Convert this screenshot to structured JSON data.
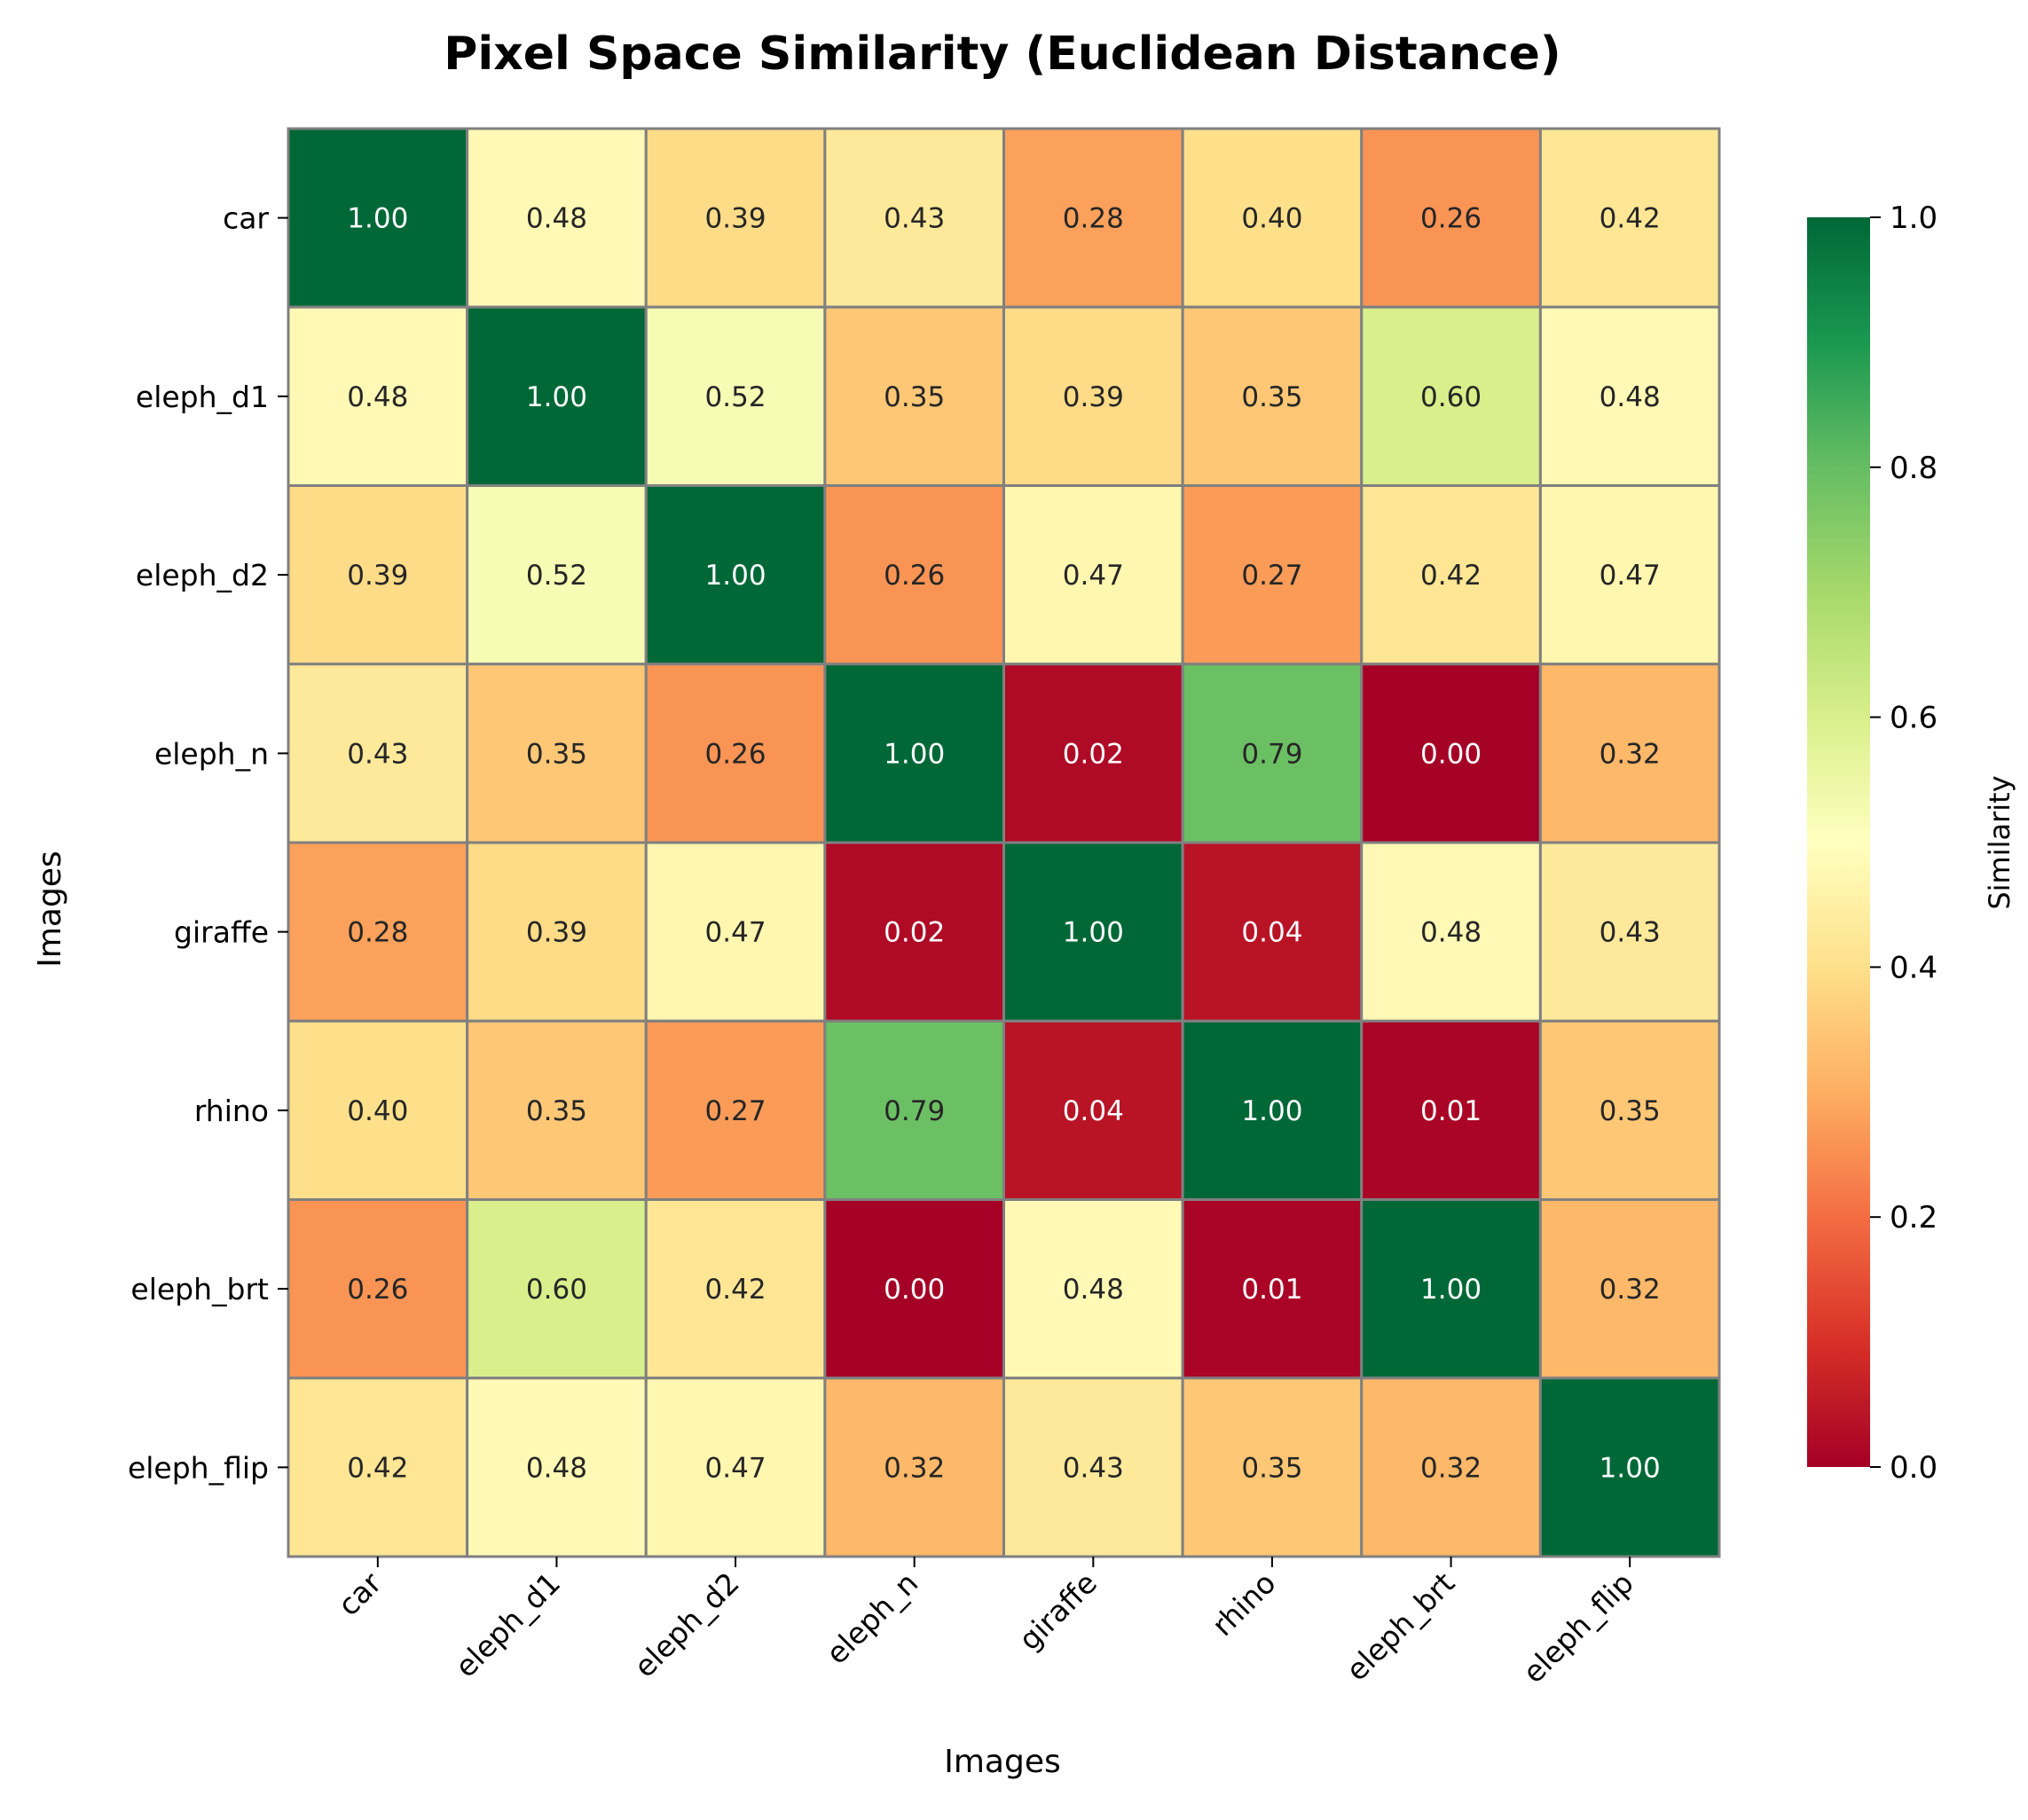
{
  "chart_data": {
    "type": "heatmap",
    "title": "Pixel Space Similarity (Euclidean Distance)",
    "xlabel": "Images",
    "ylabel": "Images",
    "categories": [
      "car",
      "eleph_d1",
      "eleph_d2",
      "eleph_n",
      "giraffe",
      "rhino",
      "eleph_brt",
      "eleph_flip"
    ],
    "values": [
      [
        1.0,
        0.48,
        0.39,
        0.43,
        0.28,
        0.4,
        0.26,
        0.42
      ],
      [
        0.48,
        1.0,
        0.52,
        0.35,
        0.39,
        0.35,
        0.6,
        0.48
      ],
      [
        0.39,
        0.52,
        1.0,
        0.26,
        0.47,
        0.27,
        0.42,
        0.47
      ],
      [
        0.43,
        0.35,
        0.26,
        1.0,
        0.02,
        0.79,
        0.0,
        0.32
      ],
      [
        0.28,
        0.39,
        0.47,
        0.02,
        1.0,
        0.04,
        0.48,
        0.43
      ],
      [
        0.4,
        0.35,
        0.27,
        0.79,
        0.04,
        1.0,
        0.01,
        0.35
      ],
      [
        0.26,
        0.6,
        0.42,
        0.0,
        0.48,
        0.01,
        1.0,
        0.32
      ],
      [
        0.42,
        0.48,
        0.47,
        0.32,
        0.43,
        0.35,
        0.32,
        1.0
      ]
    ],
    "value_format": "2 decimals",
    "colormap": "RdYlGn",
    "vmin": 0.0,
    "vmax": 1.0,
    "colorbar": {
      "label": "Similarity",
      "ticks": [
        0.0,
        0.2,
        0.4,
        0.6,
        0.8,
        1.0
      ],
      "tick_labels": [
        "0.0",
        "0.2",
        "0.4",
        "0.6",
        "0.8",
        "1.0"
      ]
    },
    "cell_border_color": "#808080",
    "grid": false
  }
}
